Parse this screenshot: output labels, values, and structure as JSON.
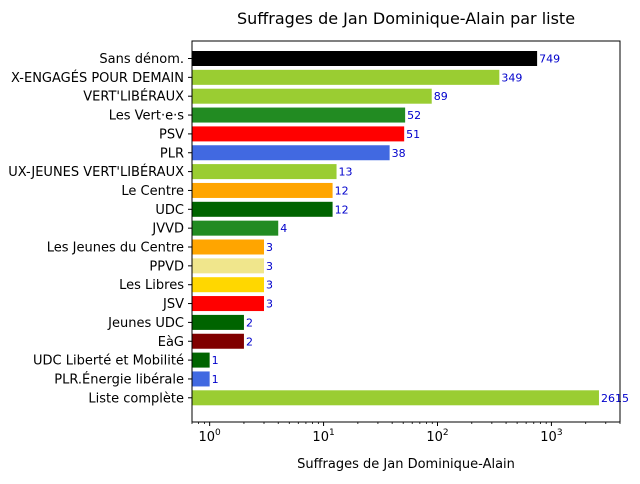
{
  "chart_data": {
    "type": "bar",
    "orientation": "horizontal",
    "title": "Suffrages de Jan Dominique-Alain par liste",
    "xlabel": "Suffrages de Jan Dominique-Alain",
    "ylabel": "",
    "xscale": "log",
    "xlim": [
      0.7,
      4000
    ],
    "xticks": [
      {
        "value": 1,
        "base": "10",
        "exp": "0"
      },
      {
        "value": 10,
        "base": "10",
        "exp": "1"
      },
      {
        "value": 100,
        "base": "10",
        "exp": "2"
      },
      {
        "value": 1000,
        "base": "10",
        "exp": "3"
      }
    ],
    "grid": false,
    "data_label_color": "#0000cc",
    "bars": [
      {
        "label": "Sans dénom.",
        "value": 749,
        "color": "#000000"
      },
      {
        "label": "X-ENGAGÉS POUR DEMAIN",
        "value": 349,
        "color": "#9acd32"
      },
      {
        "label": "VERT'LIBÉRAUX",
        "value": 89,
        "color": "#9acd32"
      },
      {
        "label": "Les Vert·e·s",
        "value": 52,
        "color": "#228b22"
      },
      {
        "label": "PSV",
        "value": 51,
        "color": "#ff0000"
      },
      {
        "label": "PLR",
        "value": 38,
        "color": "#4169e1"
      },
      {
        "label": "UX-JEUNES VERT'LIBÉRAUX",
        "value": 13,
        "color": "#9acd32"
      },
      {
        "label": "Le Centre",
        "value": 12,
        "color": "#ffa500"
      },
      {
        "label": "UDC",
        "value": 12,
        "color": "#006400"
      },
      {
        "label": "JVVD",
        "value": 4,
        "color": "#228b22"
      },
      {
        "label": "Les Jeunes du Centre",
        "value": 3,
        "color": "#ffa500"
      },
      {
        "label": "PPVD",
        "value": 3,
        "color": "#f0e68c"
      },
      {
        "label": "Les Libres",
        "value": 3,
        "color": "#ffd700"
      },
      {
        "label": "JSV",
        "value": 3,
        "color": "#ff0000"
      },
      {
        "label": "Jeunes UDC",
        "value": 2,
        "color": "#006400"
      },
      {
        "label": "EàG",
        "value": 2,
        "color": "#800000"
      },
      {
        "label": "UDC Liberté et Mobilité",
        "value": 1,
        "color": "#006400"
      },
      {
        "label": "PLR.Énergie libérale",
        "value": 1,
        "color": "#4169e1"
      },
      {
        "label": "Liste complète",
        "value": 2615,
        "color": "#9acd32"
      }
    ]
  }
}
